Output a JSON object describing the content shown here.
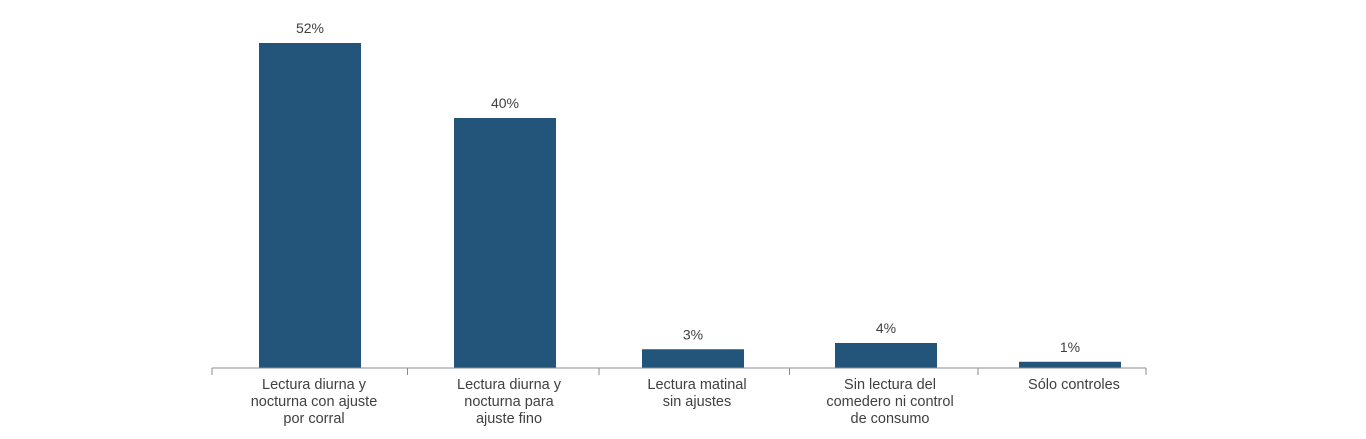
{
  "chart_data": {
    "type": "bar",
    "categories": [
      [
        "Lectura diurna y",
        "nocturna con ajuste",
        "por corral"
      ],
      [
        "Lectura diurna y",
        "nocturna para",
        "ajuste fino"
      ],
      [
        "Lectura matinal",
        "sin ajustes"
      ],
      [
        "Sin lectura del",
        "comedero ni control",
        "de consumo"
      ],
      [
        "Sólo controles"
      ]
    ],
    "values": [
      52,
      40,
      3,
      4,
      1
    ],
    "value_labels": [
      "52%",
      "40%",
      "3%",
      "4%",
      "1%"
    ],
    "title": "",
    "xlabel": "",
    "ylabel": "",
    "ylim": [
      0,
      55
    ],
    "grid": false,
    "legend": "none",
    "bar_color": "#23557a",
    "axis_color": "#8c8c8c",
    "text_color": "#404040"
  }
}
